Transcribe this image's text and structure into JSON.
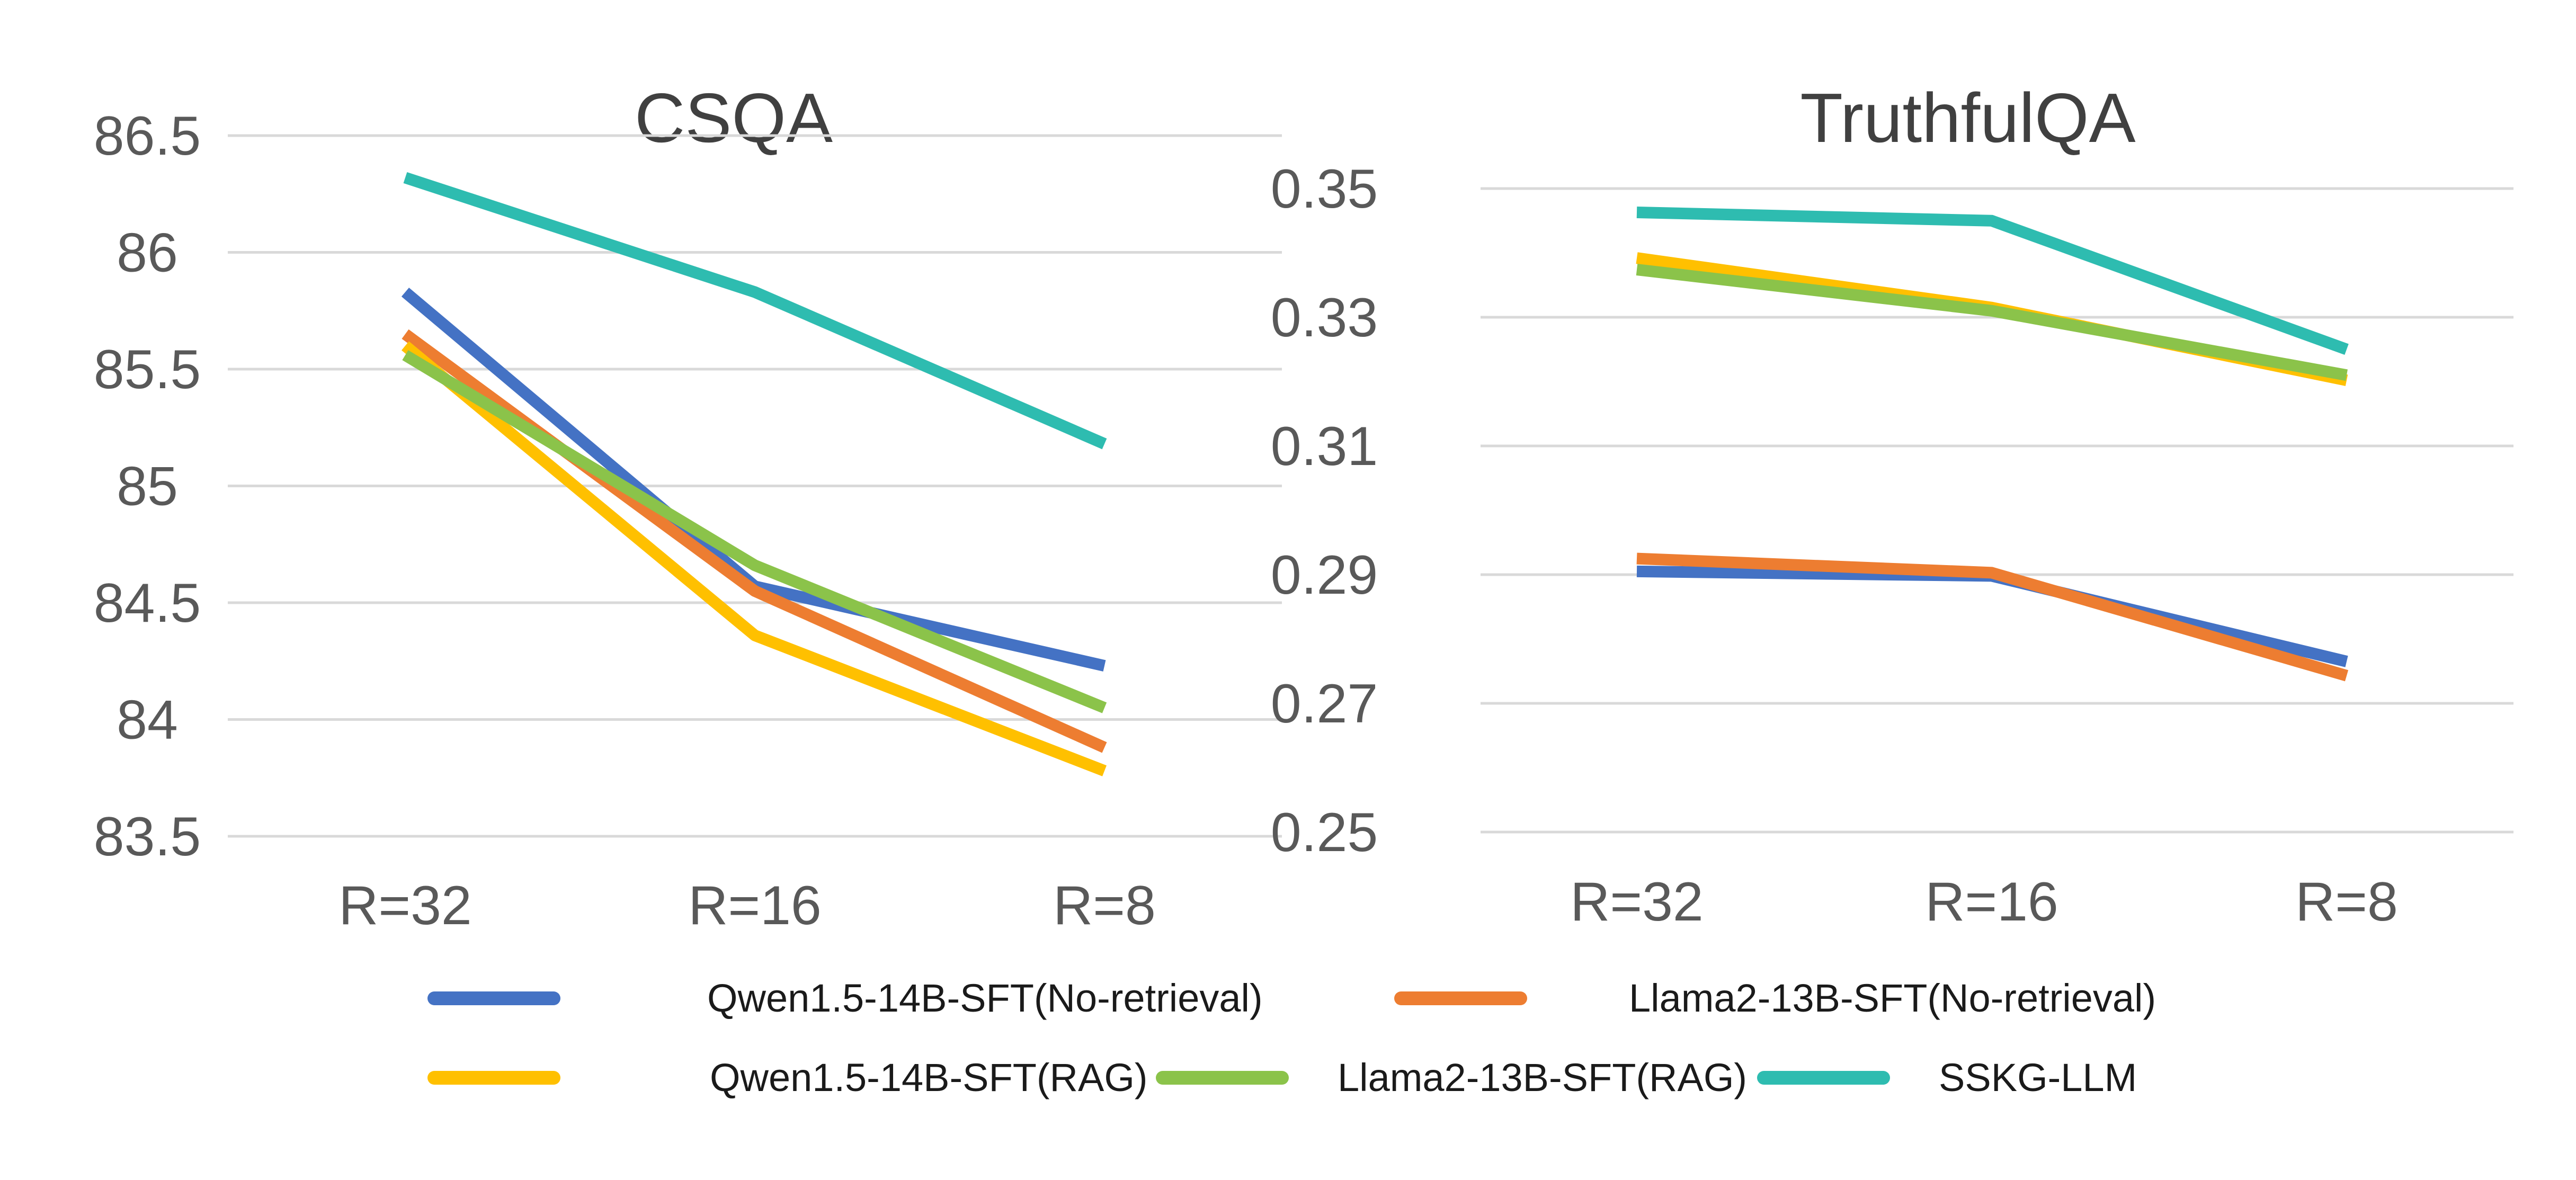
{
  "chart_data": [
    {
      "type": "line",
      "title": "CSQA",
      "xlabel": "",
      "ylabel": "",
      "categories": [
        "R=32",
        "R=16",
        "R=8"
      ],
      "ylim": [
        83.5,
        86.5
      ],
      "yticks": [
        "83.5",
        "84",
        "84.5",
        "85",
        "85.5",
        "86",
        "86.5"
      ],
      "ytick_values": [
        83.5,
        84,
        84.5,
        85,
        85.5,
        86,
        86.5
      ],
      "grid": true,
      "series": [
        {
          "name": "Qwen1.5-14B-SFT(No-retrieval)",
          "color": "#4472c4",
          "values": [
            85.83,
            84.57,
            84.23
          ]
        },
        {
          "name": "Llama2-13B-SFT(No-retrieval)",
          "color": "#ed7d31",
          "values": [
            85.65,
            84.55,
            83.88
          ]
        },
        {
          "name": "Qwen1.5-14B-SFT(RAG)",
          "color": "#ffc000",
          "values": [
            85.6,
            84.36,
            83.78
          ]
        },
        {
          "name": "Llama2-13B-SFT(RAG)",
          "color": "#8bc34a",
          "values": [
            85.56,
            84.66,
            84.05
          ]
        },
        {
          "name": "SSKG-LLM",
          "color": "#2ebcb0",
          "values": [
            86.32,
            85.83,
            85.18
          ]
        }
      ]
    },
    {
      "type": "line",
      "title": "TruthfulQA",
      "xlabel": "",
      "ylabel": "",
      "categories": [
        "R=32",
        "R=16",
        "R=8"
      ],
      "ylim": [
        0.25,
        0.35
      ],
      "yticks": [
        "0.25",
        "0.27",
        "0.29",
        "0.31",
        "0.33",
        "0.35"
      ],
      "ytick_values": [
        0.25,
        0.27,
        0.29,
        0.31,
        0.33,
        0.35
      ],
      "grid": true,
      "series": [
        {
          "name": "Qwen1.5-14B-SFT(No-retrieval)",
          "color": "#4472c4",
          "values": [
            0.2905,
            0.2898,
            0.2765
          ]
        },
        {
          "name": "Llama2-13B-SFT(No-retrieval)",
          "color": "#ed7d31",
          "values": [
            0.2925,
            0.2903,
            0.2743
          ]
        },
        {
          "name": "Qwen1.5-14B-SFT(RAG)",
          "color": "#ffc000",
          "values": [
            0.3392,
            0.3315,
            0.3202
          ]
        },
        {
          "name": "Llama2-13B-SFT(RAG)",
          "color": "#8bc34a",
          "values": [
            0.3374,
            0.331,
            0.321
          ]
        },
        {
          "name": "SSKG-LLM",
          "color": "#2ebcb0",
          "values": [
            0.3463,
            0.345,
            0.325
          ]
        }
      ]
    }
  ],
  "legend": {
    "placement": "bottom",
    "entries": [
      {
        "label": "Qwen1.5-14B-SFT(No-retrieval)",
        "color": "#4472c4"
      },
      {
        "label": "Llama2-13B-SFT(No-retrieval)",
        "color": "#ed7d31"
      },
      {
        "label": "Qwen1.5-14B-SFT(RAG)",
        "color": "#ffc000"
      },
      {
        "label": "Llama2-13B-SFT(RAG)",
        "color": "#8bc34a"
      },
      {
        "label": "SSKG-LLM",
        "color": "#2ebcb0"
      }
    ]
  }
}
